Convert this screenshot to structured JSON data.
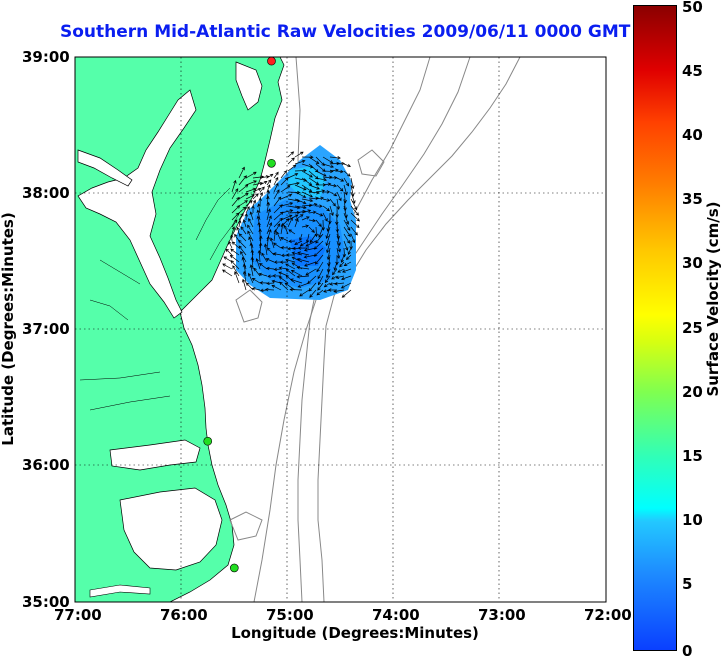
{
  "title": "Southern Mid-Atlantic Raw Velocities 2009/06/11 0000 GMT",
  "xlabel": "Longitude (Degrees:Minutes)",
  "ylabel": "Latitude (Degrees:Minutes)",
  "colorbar_label": "Surface Velocity (cm/s)",
  "x_ticks": [
    "77:00",
    "76:00",
    "75:00",
    "74:00",
    "73:00",
    "72:00"
  ],
  "y_ticks": [
    "39:00",
    "38:00",
    "37:00",
    "36:00",
    "35:00"
  ],
  "colorbar_ticks": [
    "50",
    "45",
    "40",
    "35",
    "30",
    "25",
    "20",
    "15",
    "10",
    "5",
    "0"
  ],
  "colors": {
    "land": "#55ffaa",
    "coast": "#000000",
    "bathymetry": "#888888",
    "title": "#0a1ef0",
    "station_active": "#22dd22",
    "station_alert": "#ff2020"
  },
  "map_extent": {
    "lon": [
      -77,
      -72
    ],
    "lat": [
      35,
      39
    ]
  },
  "grid": true,
  "stations": [
    {
      "lon": -75.15,
      "lat": 38.97,
      "status": "alert"
    },
    {
      "lon": -75.15,
      "lat": 38.22,
      "status": "active"
    },
    {
      "lon": -75.75,
      "lat": 36.18,
      "status": "active"
    },
    {
      "lon": -75.5,
      "lat": 35.25,
      "status": "active"
    }
  ]
}
